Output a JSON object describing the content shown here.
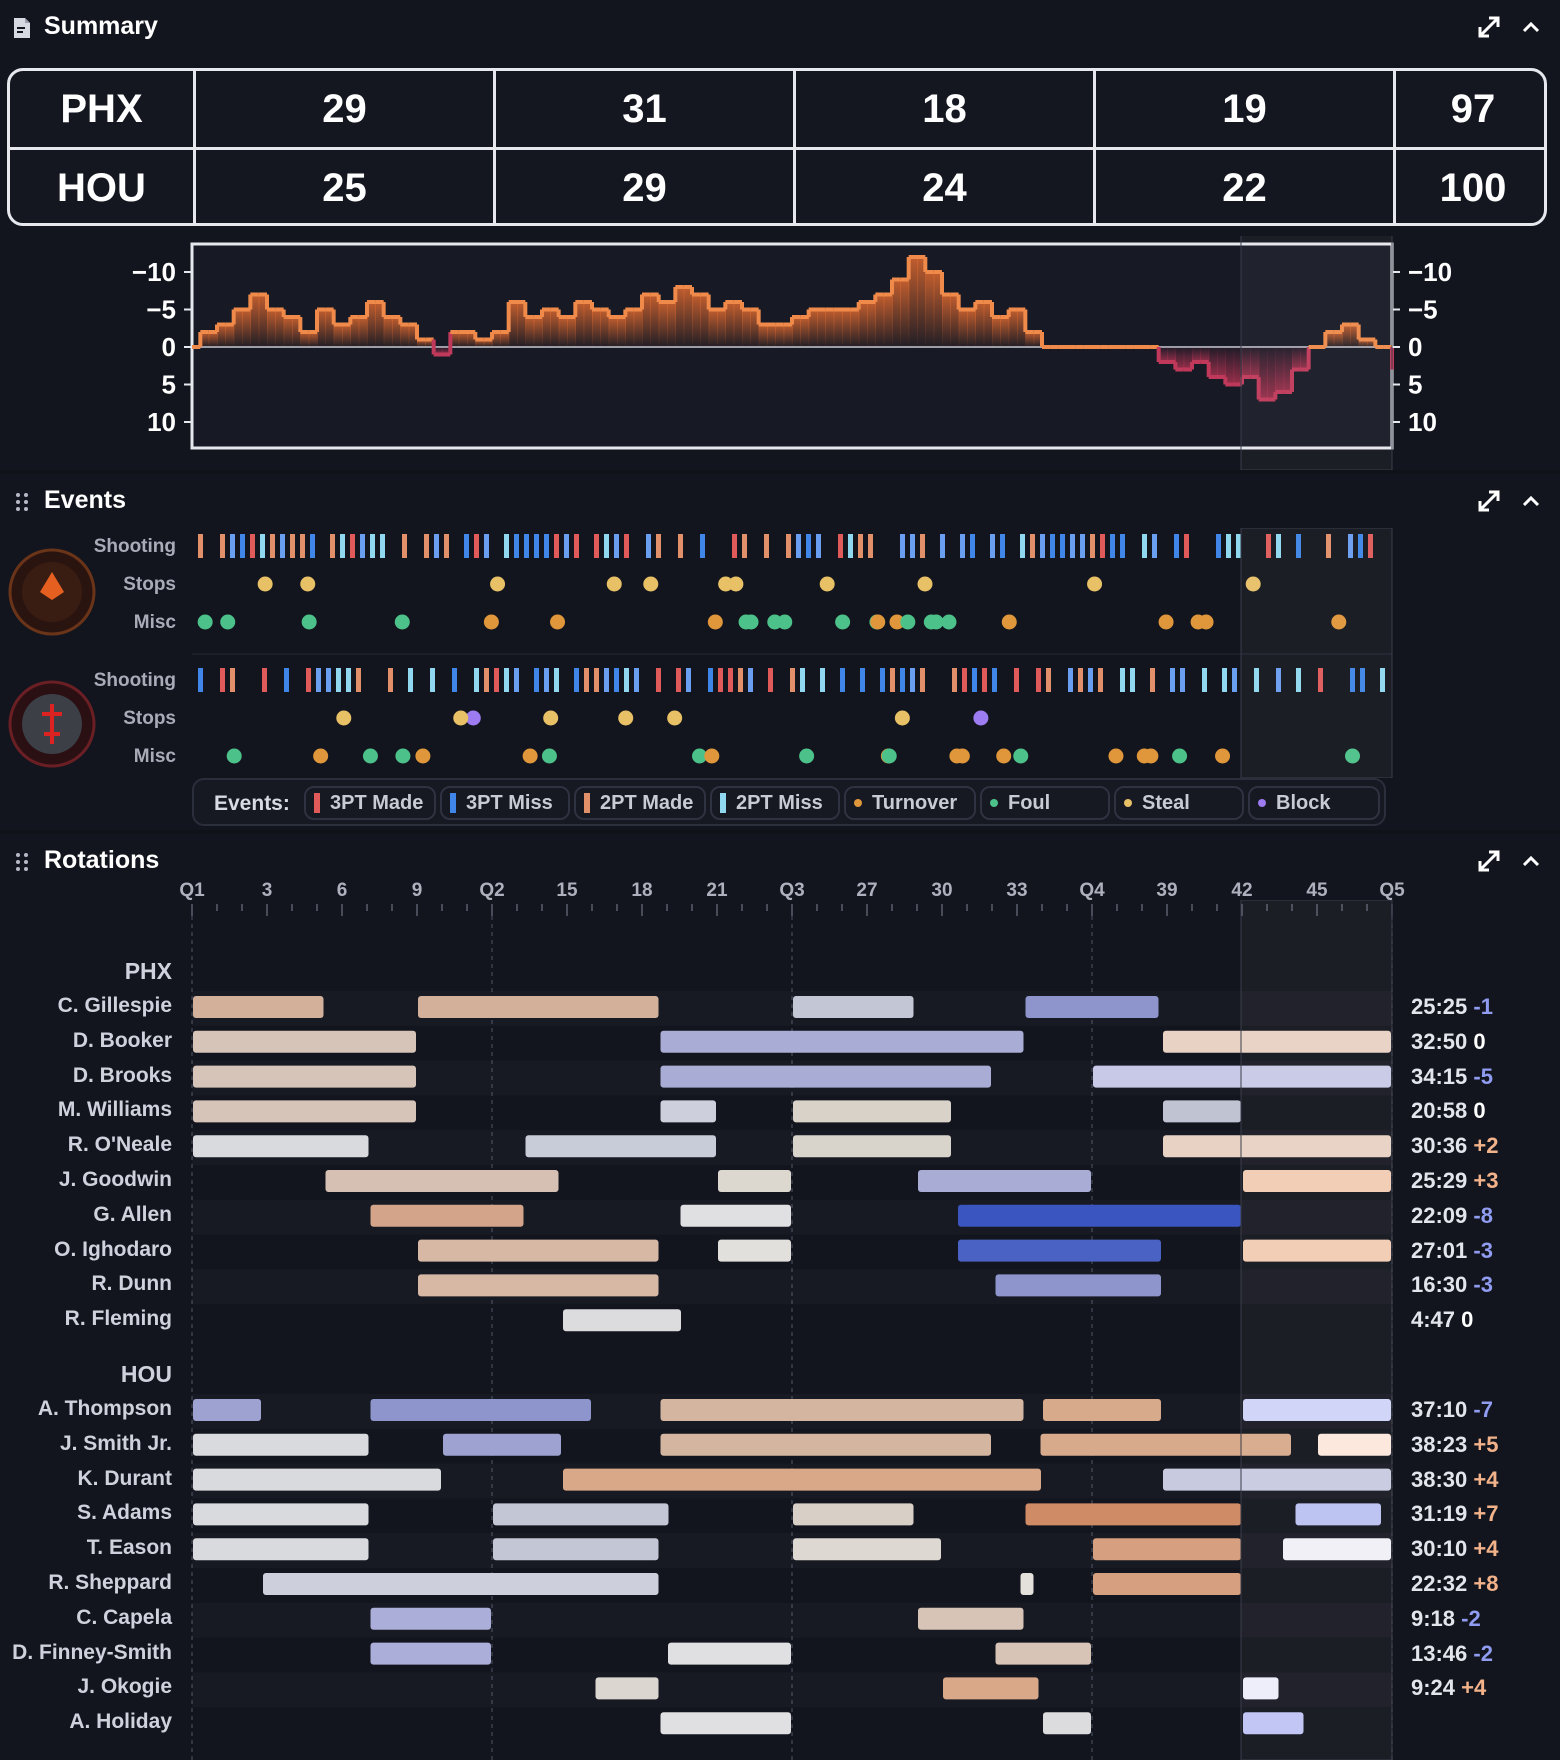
{
  "summary": {
    "title": "Summary",
    "teams": [
      {
        "name": "PHX",
        "quarters": [
          "29",
          "31",
          "18",
          "19"
        ],
        "total": "97"
      },
      {
        "name": "HOU",
        "quarters": [
          "25",
          "29",
          "24",
          "22"
        ],
        "total": "100"
      }
    ],
    "axis_left": [
      "−10",
      "−5",
      "0",
      "5",
      "10"
    ],
    "axis_right": [
      "−10",
      "−5",
      "0",
      "5",
      "10"
    ],
    "margin_series": [
      0,
      -2,
      -2,
      -3,
      -3,
      -5,
      -5,
      -7,
      -7,
      -5,
      -5,
      -4,
      -4,
      -2,
      -2,
      -5,
      -5,
      -3,
      -3,
      -4,
      -4,
      -6,
      -6,
      -4,
      -4,
      -3,
      -3,
      -1,
      -1,
      1,
      1,
      -2,
      -2,
      -2,
      -1,
      -1,
      -2,
      -2,
      -6,
      -6,
      -4,
      -4,
      -5,
      -5,
      -4,
      -4,
      -6,
      -6,
      -5,
      -5,
      -4,
      -4,
      -5,
      -5,
      -7,
      -7,
      -6,
      -6,
      -8,
      -8,
      -7,
      -7,
      -5,
      -5,
      -6,
      -6,
      -5,
      -5,
      -3,
      -3,
      -3,
      -3,
      -4,
      -4,
      -5,
      -5,
      -5,
      -5,
      -5,
      -5,
      -6,
      -6,
      -7,
      -7,
      -9,
      -9,
      -12,
      -12,
      -10,
      -10,
      -7,
      -7,
      -5,
      -5,
      -6,
      -6,
      -4,
      -4,
      -5,
      -5,
      -2,
      -2,
      0,
      0,
      0,
      0,
      0,
      0,
      0,
      0,
      0,
      0,
      0,
      0,
      0,
      0,
      2,
      2,
      3,
      3,
      2,
      2,
      4,
      4,
      5,
      5,
      4,
      4,
      7,
      7,
      6,
      6,
      3,
      3,
      0,
      0,
      -2,
      -2,
      -3,
      -3,
      -1,
      -1,
      0,
      0,
      3
    ]
  },
  "events": {
    "title": "Events",
    "row_labels": [
      "Shooting",
      "Stops",
      "Misc"
    ],
    "legend_title": "Events:",
    "legend": [
      {
        "label": "3PT Made",
        "color": "#e05a5a",
        "shape": "bar"
      },
      {
        "label": "3PT Miss",
        "color": "#3f86e8",
        "shape": "bar"
      },
      {
        "label": "2PT Made",
        "color": "#e2906a",
        "shape": "bar"
      },
      {
        "label": "2PT Miss",
        "color": "#8fd8f0",
        "shape": "bar"
      },
      {
        "label": "Turnover",
        "color": "#e0963a",
        "shape": "dot"
      },
      {
        "label": "Foul",
        "color": "#4cc28a",
        "shape": "dot"
      },
      {
        "label": "Steal",
        "color": "#e8c066",
        "shape": "dot"
      },
      {
        "label": "Block",
        "color": "#9c7cf0",
        "shape": "dot"
      }
    ]
  },
  "rotations": {
    "title": "Rotations",
    "ticks": [
      "Q1",
      "3",
      "6",
      "9",
      "Q2",
      "15",
      "18",
      "21",
      "Q3",
      "27",
      "30",
      "33",
      "Q4",
      "39",
      "42",
      "45",
      "Q5"
    ],
    "phx": {
      "team": "PHX",
      "players": [
        {
          "name": "C. Gillespie",
          "time": "25:25",
          "pm": "-1"
        },
        {
          "name": "D. Booker",
          "time": "32:50",
          "pm": "0"
        },
        {
          "name": "D. Brooks",
          "time": "34:15",
          "pm": "-5"
        },
        {
          "name": "M. Williams",
          "time": "20:58",
          "pm": "0"
        },
        {
          "name": "R. O'Neale",
          "time": "30:36",
          "pm": "+2"
        },
        {
          "name": "J. Goodwin",
          "time": "25:29",
          "pm": "+3"
        },
        {
          "name": "G. Allen",
          "time": "22:09",
          "pm": "-8"
        },
        {
          "name": "O. Ighodaro",
          "time": "27:01",
          "pm": "-3"
        },
        {
          "name": "R. Dunn",
          "time": "16:30",
          "pm": "-3"
        },
        {
          "name": "R. Fleming",
          "time": "4:47",
          "pm": "0"
        }
      ]
    },
    "hou": {
      "team": "HOU",
      "players": [
        {
          "name": "A. Thompson",
          "time": "37:10",
          "pm": "-7"
        },
        {
          "name": "J. Smith Jr.",
          "time": "38:23",
          "pm": "+5"
        },
        {
          "name": "K. Durant",
          "time": "38:30",
          "pm": "+4"
        },
        {
          "name": "S. Adams",
          "time": "31:19",
          "pm": "+7"
        },
        {
          "name": "T. Eason",
          "time": "30:10",
          "pm": "+4"
        },
        {
          "name": "R. Sheppard",
          "time": "22:32",
          "pm": "+8"
        },
        {
          "name": "C. Capela",
          "time": "9:18",
          "pm": "-2"
        },
        {
          "name": "D. Finney-Smith",
          "time": "13:46",
          "pm": "-2"
        },
        {
          "name": "J. Okogie",
          "time": "9:24",
          "pm": "+4"
        },
        {
          "name": "A. Holiday",
          "time": "",
          "pm": ""
        }
      ]
    }
  },
  "colors": {
    "positive": "#ef8a4a",
    "negative": "#c0395a",
    "plus": "#f2b28a",
    "minus": "#8f9cf0"
  }
}
